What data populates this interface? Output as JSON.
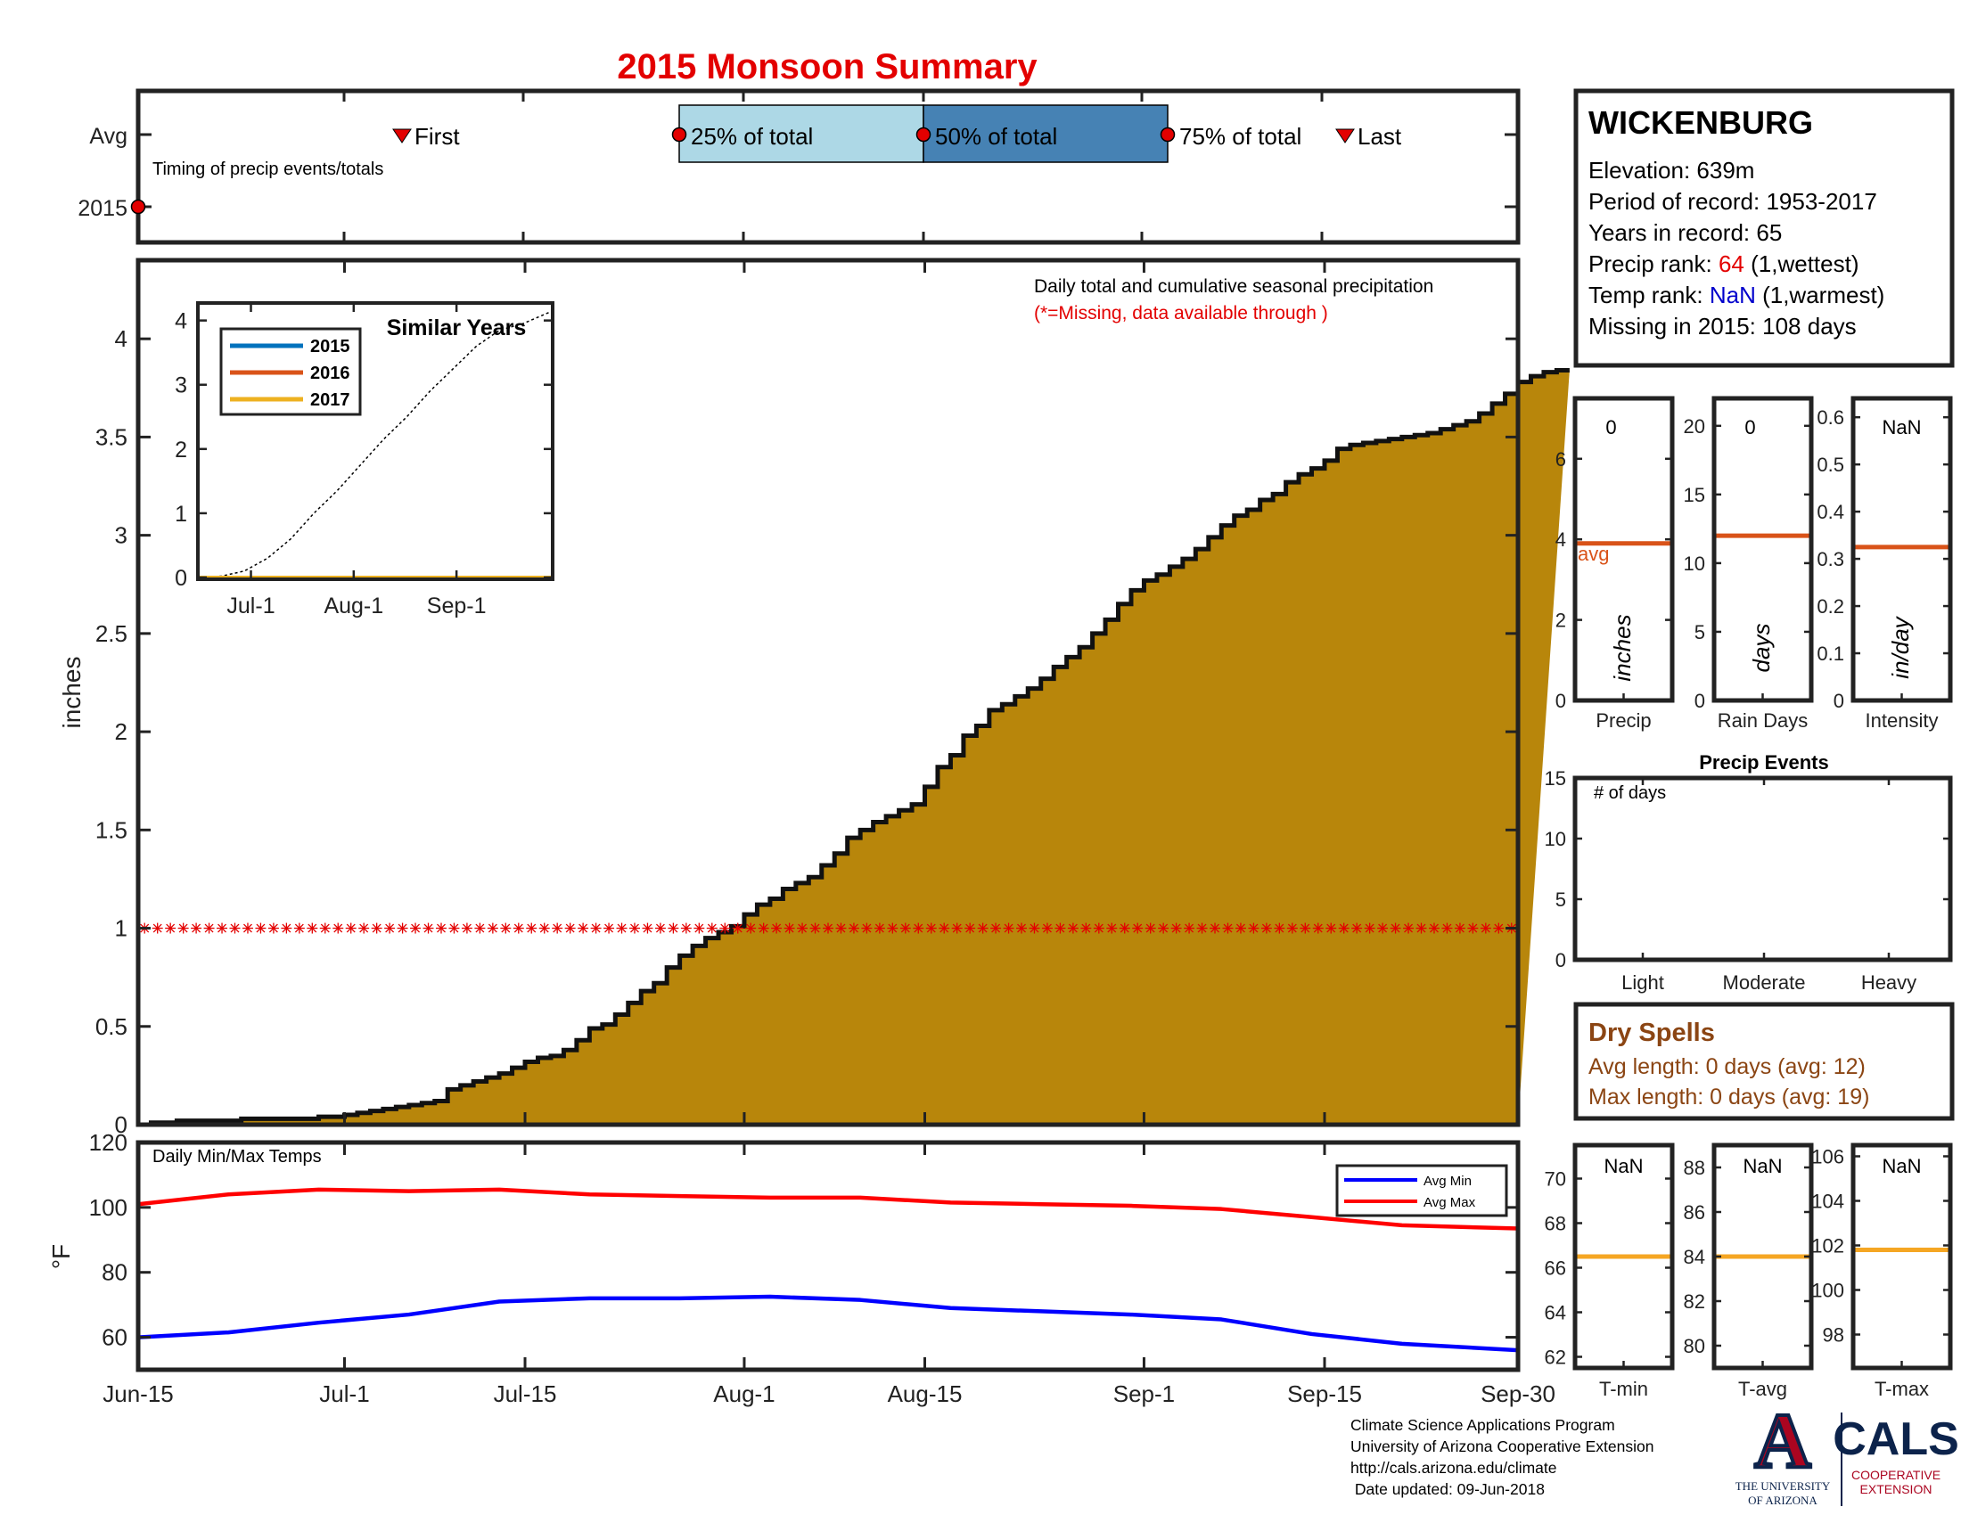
{
  "title": "2015 Monsoon Summary",
  "timing": {
    "row_avg": "Avg",
    "row_year": "2015",
    "caption": "Timing of precip events/totals",
    "first": "First",
    "p25": "25% of total",
    "p50": "50% of total",
    "p75": "75% of total",
    "last": "Last",
    "colors": {
      "q1": "#add8e6",
      "q2": "#4682b4",
      "marker": "#e30000"
    }
  },
  "x_ticks": [
    "Jun-15",
    "Jul-1",
    "Jul-15",
    "Aug-1",
    "Aug-15",
    "Sep-1",
    "Sep-15",
    "Sep-30"
  ],
  "station": {
    "name": "WICKENBURG",
    "elevation_label": "Elevation:",
    "elevation": "639m",
    "period_label": "Period of record:",
    "period": "1953-2017",
    "years_label": "Years in record:",
    "years": "65",
    "precip_rank_label": "Precip rank:",
    "precip_rank": "64",
    "precip_rank_note": "(1,wettest)",
    "temp_rank_label": "Temp rank:",
    "temp_rank": "NaN",
    "temp_rank_note": "(1,warmest)",
    "missing_label": "Missing in 2015:",
    "missing": "108 days",
    "colors": {
      "precip_rank": "#e30000",
      "temp_rank": "#0000cc"
    }
  },
  "dry_spells": {
    "title": "Dry Spells",
    "avg_line": "Avg length: 0 days (avg: 12)",
    "max_line": "Max length: 0 days (avg: 19)",
    "color": "#8b4513"
  },
  "footer": {
    "line1": "Climate Science Applications Program",
    "line2": "University of Arizona Cooperative Extension",
    "line3": "http://cals.arizona.edu/climate",
    "line4": " Date updated: 09-Jun-2018"
  },
  "logos": {
    "ua_letter": "A",
    "ua_line1": "THE UNIVERSITY",
    "ua_line2": "OF ARIZONA",
    "cals": "CALS",
    "cals_line1": "COOPERATIVE",
    "cals_line2": "EXTENSION"
  },
  "chart_data": [
    {
      "id": "precip_main",
      "type": "area",
      "title": "Daily total and cumulative seasonal precipitation",
      "subtitle": "(*=Missing, data available through )",
      "ylabel": "inches",
      "ylim": [
        0,
        4.4
      ],
      "yticks": [
        "0",
        "0.5",
        "1",
        "1.5",
        "2",
        "2.5",
        "3",
        "3.5",
        "4"
      ],
      "fill_color": "#b8860b",
      "missing_marker_value": 1,
      "cumulative_inches": [
        0,
        0.01,
        0.01,
        0.02,
        0.02,
        0.02,
        0.02,
        0.02,
        0.03,
        0.03,
        0.03,
        0.03,
        0.03,
        0.03,
        0.04,
        0.04,
        0.05,
        0.06,
        0.07,
        0.08,
        0.09,
        0.1,
        0.11,
        0.12,
        0.18,
        0.2,
        0.22,
        0.24,
        0.26,
        0.29,
        0.32,
        0.34,
        0.35,
        0.38,
        0.43,
        0.49,
        0.51,
        0.56,
        0.62,
        0.68,
        0.72,
        0.8,
        0.86,
        0.91,
        0.95,
        0.98,
        1.01,
        1.07,
        1.12,
        1.15,
        1.2,
        1.23,
        1.26,
        1.32,
        1.38,
        1.46,
        1.5,
        1.54,
        1.57,
        1.6,
        1.63,
        1.72,
        1.82,
        1.88,
        1.98,
        2.03,
        2.11,
        2.14,
        2.18,
        2.22,
        2.27,
        2.33,
        2.38,
        2.43,
        2.5,
        2.57,
        2.65,
        2.72,
        2.77,
        2.8,
        2.84,
        2.88,
        2.93,
        2.99,
        3.05,
        3.1,
        3.13,
        3.18,
        3.21,
        3.27,
        3.31,
        3.34,
        3.38,
        3.44,
        3.46,
        3.47,
        3.48,
        3.49,
        3.5,
        3.51,
        3.52,
        3.54,
        3.56,
        3.58,
        3.62,
        3.67,
        3.72,
        3.78,
        3.81,
        3.83,
        3.84
      ]
    },
    {
      "id": "similar_years",
      "type": "line",
      "title": "Similar Years",
      "x": [
        "Jun-15",
        "Jun-22",
        "Jun-29",
        "Jul-6",
        "Jul-13",
        "Jul-20",
        "Jul-27",
        "Aug-3",
        "Aug-10",
        "Aug-17",
        "Aug-24",
        "Aug-31",
        "Sep-7",
        "Sep-14",
        "Sep-21",
        "Sep-30"
      ],
      "xticks": [
        "Jul-1",
        "Aug-1",
        "Sep-1"
      ],
      "ylim": [
        0,
        4.3
      ],
      "yticks": [
        "0",
        "1",
        "2",
        "3",
        "4"
      ],
      "series": [
        {
          "name": "2015",
          "color": "#0072bd",
          "values": [
            0,
            0,
            0,
            0,
            0,
            0,
            0,
            0,
            0,
            0,
            0,
            0,
            0,
            0,
            0,
            0
          ]
        },
        {
          "name": "2016",
          "color": "#d95319",
          "values": [
            0,
            0,
            0,
            0,
            0,
            0,
            0,
            0,
            0,
            0,
            0,
            0,
            0,
            0,
            0,
            0
          ]
        },
        {
          "name": "2017",
          "color": "#edb120",
          "values": [
            0,
            0,
            0,
            0,
            0,
            0,
            0,
            0,
            0,
            0,
            0,
            0,
            0,
            0,
            0,
            0
          ]
        }
      ],
      "reference_values": [
        0,
        0.02,
        0.1,
        0.3,
        0.6,
        1.0,
        1.35,
        1.75,
        2.15,
        2.5,
        2.9,
        3.25,
        3.6,
        3.85,
        3.95,
        4.15
      ]
    },
    {
      "id": "temps",
      "type": "line",
      "title": "Daily Min/Max Temps",
      "ylabel": "°F",
      "ylim": [
        50,
        120
      ],
      "yticks": [
        "60",
        "80",
        "100",
        "120"
      ],
      "x": [
        "Jun-15",
        "Jun-22",
        "Jun-29",
        "Jul-6",
        "Jul-13",
        "Jul-20",
        "Jul-27",
        "Aug-3",
        "Aug-10",
        "Aug-17",
        "Aug-24",
        "Aug-31",
        "Sep-7",
        "Sep-14",
        "Sep-21",
        "Sep-30"
      ],
      "series": [
        {
          "name": "Avg Min",
          "color": "#0000ff",
          "values": [
            60,
            61.5,
            64.5,
            67,
            71,
            72,
            72,
            72.5,
            71.5,
            69,
            68,
            67,
            65.5,
            61,
            58,
            56
          ]
        },
        {
          "name": "Avg Max",
          "color": "#ff0000",
          "values": [
            101,
            104,
            105.5,
            105,
            105.5,
            104,
            103.5,
            103,
            103,
            101.5,
            101,
            100.5,
            99.5,
            97,
            94.5,
            93.5
          ]
        }
      ]
    },
    {
      "id": "precip_totals",
      "type": "bar",
      "title": "Precip",
      "ylabel": "inches",
      "value_label": "0",
      "avg_label": "avg",
      "ylim": [
        0,
        7.5
      ],
      "yticks": [
        "0",
        "2",
        "4",
        "6"
      ],
      "avg": 3.9,
      "value": 0
    },
    {
      "id": "rain_days",
      "type": "bar",
      "title": "Rain Days",
      "ylabel": "days",
      "value_label": "0",
      "ylim": [
        0,
        22
      ],
      "yticks": [
        "0",
        "5",
        "10",
        "15",
        "20"
      ],
      "avg": 12,
      "value": 0
    },
    {
      "id": "intensity",
      "type": "bar",
      "title": "Intensity",
      "ylabel": "in/day",
      "value_label": "NaN",
      "ylim": [
        0,
        0.64
      ],
      "yticks": [
        "0",
        "0.1",
        "0.2",
        "0.3",
        "0.4",
        "0.5",
        "0.6"
      ],
      "avg": 0.325,
      "value": null
    },
    {
      "id": "precip_events",
      "type": "bar",
      "title": "Precip Events",
      "label": "# of days",
      "categories": [
        "Light",
        "Moderate",
        "Heavy"
      ],
      "values": [
        0,
        0,
        0
      ],
      "ylim": [
        0,
        15
      ],
      "yticks": [
        "0",
        "5",
        "10",
        "15"
      ]
    },
    {
      "id": "tmin",
      "type": "bar",
      "title": "T-min",
      "value_label": "NaN",
      "ylim": [
        61.5,
        71.5
      ],
      "yticks": [
        "62",
        "64",
        "66",
        "68",
        "70"
      ],
      "avg": 66.5
    },
    {
      "id": "tavg",
      "type": "bar",
      "title": "T-avg",
      "value_label": "NaN",
      "ylim": [
        79,
        89
      ],
      "yticks": [
        "80",
        "82",
        "84",
        "86",
        "88"
      ],
      "avg": 84
    },
    {
      "id": "tmax",
      "type": "bar",
      "title": "T-max",
      "value_label": "NaN",
      "ylim": [
        96.5,
        106.5
      ],
      "yticks": [
        "98",
        "100",
        "102",
        "104",
        "106"
      ],
      "avg": 101.8
    }
  ]
}
